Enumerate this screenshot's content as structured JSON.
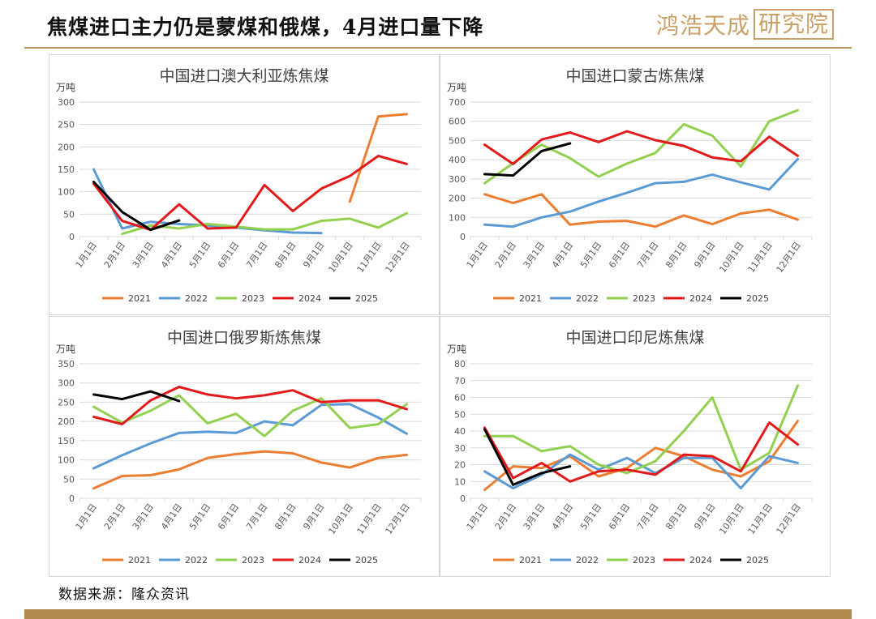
{
  "page": {
    "title": "焦煤进口主力仍是蒙煤和俄煤，4月进口量下降",
    "logo_text": "鸿浩天成",
    "logo_box_text": "研究院",
    "source": "数据来源：隆众资讯"
  },
  "colors": {
    "2021": "#ed7d31",
    "2022": "#5b9bd5",
    "2023": "#92d050",
    "2024": "#e31a1c",
    "2025": "#000000",
    "grid": "#d9d9d9",
    "brand": "#b8965c"
  },
  "chart_data": [
    {
      "type": "line",
      "title": "中国进口澳大利亚炼焦煤",
      "ylabel": "万吨",
      "ylim": [
        0,
        300
      ],
      "yticks": [
        0,
        50,
        100,
        150,
        200,
        250,
        300
      ],
      "legend_position": "bottom",
      "grid": true,
      "categories": [
        "1月1日",
        "2月1日",
        "3月1日",
        "4月1日",
        "5月1日",
        "6月1日",
        "7月1日",
        "8月1日",
        "9月1日",
        "10月1日",
        "11月1日",
        "12月1日"
      ],
      "series": [
        {
          "name": "2021",
          "values": [
            null,
            null,
            null,
            null,
            null,
            null,
            null,
            null,
            null,
            78,
            268,
            273
          ]
        },
        {
          "name": "2022",
          "values": [
            150,
            18,
            33,
            28,
            25,
            20,
            14,
            9,
            8,
            null,
            null,
            null
          ]
        },
        {
          "name": "2023",
          "values": [
            null,
            6,
            25,
            18,
            28,
            22,
            16,
            16,
            35,
            40,
            20,
            52
          ]
        },
        {
          "name": "2024",
          "values": [
            118,
            35,
            15,
            72,
            18,
            20,
            115,
            57,
            107,
            135,
            180,
            162
          ]
        },
        {
          "name": "2025",
          "values": [
            122,
            55,
            15,
            36,
            null,
            null,
            null,
            null,
            null,
            null,
            null,
            null
          ]
        }
      ]
    },
    {
      "type": "line",
      "title": "中国进口蒙古炼焦煤",
      "ylabel": "万吨",
      "ylim": [
        0,
        700
      ],
      "yticks": [
        0,
        100,
        200,
        300,
        400,
        500,
        600,
        700
      ],
      "legend_position": "bottom",
      "grid": true,
      "categories": [
        "1月1日",
        "2月1日",
        "3月1日",
        "4月1日",
        "5月1日",
        "6月1日",
        "7月1日",
        "8月1日",
        "9月1日",
        "10月1日",
        "11月1日",
        "12月1日"
      ],
      "series": [
        {
          "name": "2021",
          "values": [
            220,
            175,
            220,
            62,
            78,
            82,
            52,
            110,
            65,
            120,
            140,
            88
          ]
        },
        {
          "name": "2022",
          "values": [
            62,
            52,
            100,
            130,
            182,
            228,
            278,
            285,
            322,
            282,
            245,
            403
          ]
        },
        {
          "name": "2023",
          "values": [
            278,
            382,
            478,
            408,
            312,
            380,
            435,
            585,
            525,
            365,
            600,
            658
          ]
        },
        {
          "name": "2024",
          "values": [
            478,
            378,
            505,
            542,
            492,
            548,
            502,
            472,
            412,
            392,
            520,
            420
          ]
        },
        {
          "name": "2025",
          "values": [
            325,
            318,
            445,
            485,
            null,
            null,
            null,
            null,
            null,
            null,
            null,
            null
          ]
        }
      ]
    },
    {
      "type": "line",
      "title": "中国进口俄罗斯炼焦煤",
      "ylabel": "万吨",
      "ylim": [
        0,
        350
      ],
      "yticks": [
        0,
        50,
        100,
        150,
        200,
        250,
        300,
        350
      ],
      "legend_position": "bottom",
      "grid": true,
      "categories": [
        "1月1日",
        "2月1日",
        "3月1日",
        "4月1日",
        "5月1日",
        "6月1日",
        "7月1日",
        "8月1日",
        "9月1日",
        "10月1日",
        "11月1日",
        "12月1日"
      ],
      "series": [
        {
          "name": "2021",
          "values": [
            26,
            58,
            60,
            75,
            105,
            115,
            122,
            117,
            93,
            80,
            105,
            113
          ]
        },
        {
          "name": "2022",
          "values": [
            78,
            112,
            143,
            170,
            173,
            170,
            200,
            190,
            243,
            245,
            210,
            168
          ]
        },
        {
          "name": "2023",
          "values": [
            238,
            197,
            228,
            268,
            195,
            220,
            162,
            228,
            260,
            183,
            193,
            245
          ]
        },
        {
          "name": "2024",
          "values": [
            212,
            193,
            255,
            290,
            270,
            260,
            268,
            281,
            250,
            255,
            255,
            232
          ]
        },
        {
          "name": "2025",
          "values": [
            270,
            258,
            278,
            253,
            null,
            null,
            null,
            null,
            null,
            null,
            null,
            null
          ]
        }
      ]
    },
    {
      "type": "line",
      "title": "中国进口印尼炼焦煤",
      "ylabel": "万吨",
      "ylim": [
        0,
        80
      ],
      "yticks": [
        0,
        10,
        20,
        30,
        40,
        50,
        60,
        70,
        80
      ],
      "legend_position": "bottom",
      "grid": true,
      "categories": [
        "1月1日",
        "2月1日",
        "3月1日",
        "4月1日",
        "5月1日",
        "6月1日",
        "7月1日",
        "8月1日",
        "9月1日",
        "10月1日",
        "11月1日",
        "12月1日"
      ],
      "series": [
        {
          "name": "2021",
          "values": [
            5,
            19,
            18,
            25,
            13,
            18,
            30,
            25,
            17,
            13,
            22,
            46
          ]
        },
        {
          "name": "2022",
          "values": [
            16,
            6,
            14,
            26,
            17,
            24,
            15,
            24,
            24,
            6,
            25,
            21
          ]
        },
        {
          "name": "2023",
          "values": [
            37,
            37,
            28,
            31,
            20,
            15,
            22,
            40,
            60,
            17,
            27,
            67
          ]
        },
        {
          "name": "2024",
          "values": [
            42,
            12,
            21,
            10,
            16,
            17,
            14,
            26,
            25,
            16,
            45,
            32
          ]
        },
        {
          "name": "2025",
          "values": [
            41,
            8,
            15,
            19,
            null,
            null,
            null,
            null,
            null,
            null,
            null,
            null
          ]
        }
      ]
    }
  ]
}
